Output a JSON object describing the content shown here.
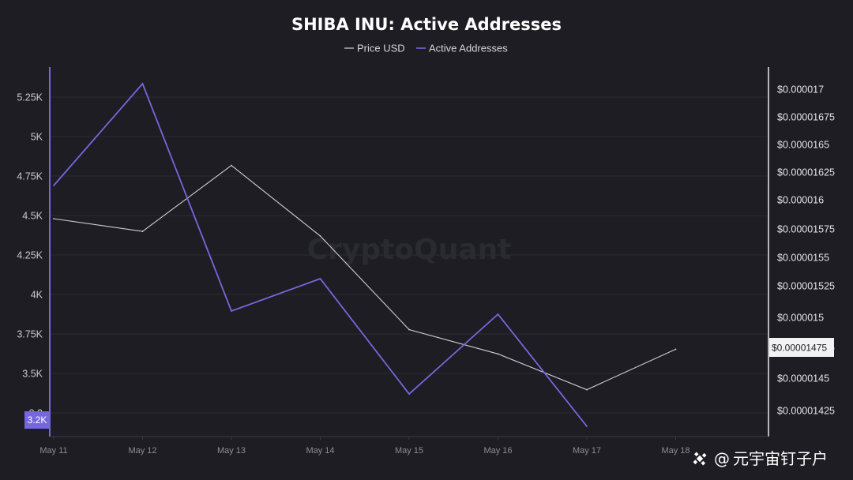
{
  "chart_data": {
    "type": "line",
    "title": "SHIBA INU: Active Addresses",
    "categories": [
      "May 11",
      "May 12",
      "May 13",
      "May 14",
      "May 15",
      "May 16",
      "May 17",
      "May 18"
    ],
    "series": [
      {
        "name": "Price USD",
        "axis": "right",
        "color": "#cfcfd4",
        "values": [
          1.588e-05,
          1.577e-05,
          1.634e-05,
          1.573e-05,
          1.492e-05,
          1.471e-05,
          1.44e-05,
          1.475e-05
        ]
      },
      {
        "name": "Active Addresses",
        "axis": "left",
        "color": "#7568de",
        "values": [
          4690,
          5335,
          3895,
          4100,
          3370,
          3875,
          3165,
          null
        ]
      }
    ],
    "y_left": {
      "ticks": [
        "5.25K",
        "5K",
        "4.75K",
        "4.5K",
        "4.25K",
        "4K",
        "3.75K",
        "3.5K",
        "3.2"
      ],
      "ylim": [
        3125,
        5375
      ]
    },
    "y_right": {
      "ticks": [
        "$0.000017",
        "$0.00001675",
        "$0.0000165",
        "$0.00001625",
        "$0.000016",
        "$0.00001575",
        "$0.0000155",
        "$0.00001525",
        "$0.000015",
        "$0.00001475",
        "$0.0000145",
        "$0.00001425"
      ],
      "ylim": [
        1.41e-05,
        1.715e-05
      ]
    },
    "last_value_tags": {
      "left": "3.2K",
      "right": "$0.00001475"
    },
    "legend_placement": "top-center",
    "grid": "horizontal"
  },
  "watermark": "CryptoQuant",
  "branding": {
    "text": "元宇宙钉子户"
  }
}
